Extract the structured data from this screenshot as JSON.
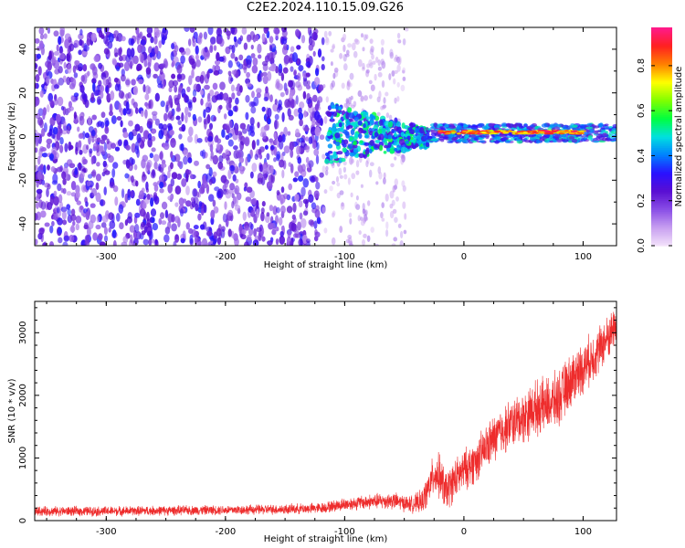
{
  "figure": {
    "title": "C2E2.2024.110.15.09.G26"
  },
  "colors": {
    "snr_line": "#ee2c2c",
    "colormap": [
      "#f4e3fb",
      "#c8a0f0",
      "#8a4fe6",
      "#5a0fd2",
      "#2a10ff",
      "#0080ff",
      "#00e0e0",
      "#00ff40",
      "#80ff00",
      "#ffff00",
      "#ff8000",
      "#ff2020",
      "#ff1a8c"
    ]
  },
  "chart_data": [
    {
      "type": "heatmap",
      "title": "",
      "xlabel": "Height of straight line (km)",
      "ylabel": "Frequency (Hz)",
      "xlim": [
        -360,
        128
      ],
      "ylim": [
        -50,
        50
      ],
      "xticks": [
        -300,
        -200,
        -100,
        0,
        100
      ],
      "yticks": [
        -40,
        -20,
        0,
        20,
        40
      ],
      "colorbar": {
        "label": "Normalized spectral amplitude",
        "range": [
          0.0,
          0.97
        ],
        "ticks": [
          0.0,
          0.2,
          0.4,
          0.6,
          0.8
        ]
      },
      "regions": [
        {
          "x_range": [
            -360,
            -118
          ],
          "freq_range": [
            -50,
            50
          ],
          "amplitude": 0.08,
          "note_colorscale": "scattered low-amplitude noise"
        },
        {
          "x_range": [
            -118,
            -50
          ],
          "freq_range": [
            -50,
            50
          ],
          "amplitude": 0.03
        },
        {
          "x_range": [
            -115,
            -30
          ],
          "freq_range": [
            -10,
            15
          ],
          "amplitude": 0.25
        },
        {
          "x_range": [
            -30,
            128
          ],
          "freq_range": [
            -3,
            6
          ],
          "amplitude": 0.3
        },
        {
          "x_range": [
            -20,
            100
          ],
          "freq_range": [
            1,
            3
          ],
          "amplitude": 0.9
        }
      ]
    },
    {
      "type": "line",
      "title": "",
      "xlabel": "Height of straight line (km)",
      "ylabel": "SNR (10 * v/v)",
      "xlim": [
        -360,
        128
      ],
      "ylim": [
        0,
        3500
      ],
      "xticks": [
        -300,
        -200,
        -100,
        0,
        100
      ],
      "yticks": [
        0,
        1000,
        2000,
        3000
      ],
      "series": [
        {
          "x": [
            -360,
            -300,
            -250,
            -200,
            -150,
            -120,
            -100,
            -80,
            -60,
            -45,
            -35,
            -30,
            -25,
            -20,
            -15,
            -10,
            -5,
            0,
            10,
            20,
            30,
            40,
            50,
            60,
            70,
            80,
            90,
            100,
            110,
            120,
            128
          ],
          "y": [
            150,
            150,
            160,
            170,
            180,
            200,
            260,
            300,
            320,
            260,
            300,
            500,
            750,
            700,
            450,
            600,
            700,
            800,
            950,
            1200,
            1400,
            1550,
            1650,
            1800,
            1850,
            1950,
            2250,
            2450,
            2650,
            2900,
            3150
          ],
          "spread": [
            90,
            90,
            90,
            90,
            95,
            100,
            120,
            140,
            160,
            150,
            220,
            320,
            380,
            420,
            380,
            380,
            380,
            380,
            400,
            420,
            450,
            450,
            480,
            500,
            500,
            520,
            500,
            480,
            450,
            420,
            380
          ]
        }
      ]
    }
  ]
}
